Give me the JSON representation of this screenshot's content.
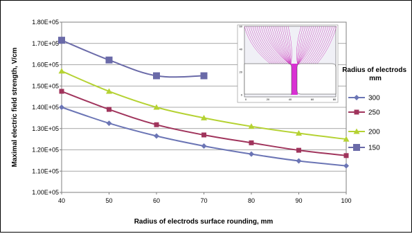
{
  "chart_data": {
    "type": "line",
    "title": "",
    "xlabel": "Radius of electrods surface  rounding, mm",
    "ylabel": "Maximal electric field strength, V/cm",
    "x": [
      40,
      50,
      60,
      70,
      80,
      90,
      100
    ],
    "x_ticks": [
      "40",
      "50",
      "60",
      "70",
      "80",
      "90",
      "100"
    ],
    "ylim": [
      100000,
      180000
    ],
    "y_ticks": [
      "1.00E+05",
      "1.10E+05",
      "1.20E+05",
      "1.30E+05",
      "1.40E+05",
      "1.50E+05",
      "1.60E+05",
      "1.70E+05",
      "1.80E+05"
    ],
    "grid": true,
    "legend": {
      "title": "Radius of electrods mm",
      "position": "right",
      "entries": [
        "300",
        "250",
        "200",
        "150"
      ]
    },
    "series": [
      {
        "name": "300",
        "marker": "diamond",
        "color": "#6b75b5",
        "values": [
          140000,
          132500,
          126500,
          121800,
          118000,
          114800,
          112500
        ]
      },
      {
        "name": "250",
        "marker": "square",
        "color": "#a0345c",
        "values": [
          147500,
          139000,
          131800,
          127000,
          123300,
          119800,
          117300
        ]
      },
      {
        "name": "200",
        "marker": "triangle",
        "color": "#b5d233",
        "values": [
          157000,
          147500,
          140000,
          135000,
          131000,
          127800,
          125000
        ]
      },
      {
        "name": "150",
        "marker": "big-square",
        "color": "#6a6aa8",
        "values": [
          171500,
          162200,
          154800,
          154800,
          null,
          null,
          null
        ]
      }
    ],
    "inset": {
      "description": "field line plot",
      "y_ticks": [
        "0",
        "20",
        "40",
        "60"
      ],
      "x_ticks": [
        "0",
        "20",
        "40",
        "60",
        "80"
      ]
    }
  }
}
